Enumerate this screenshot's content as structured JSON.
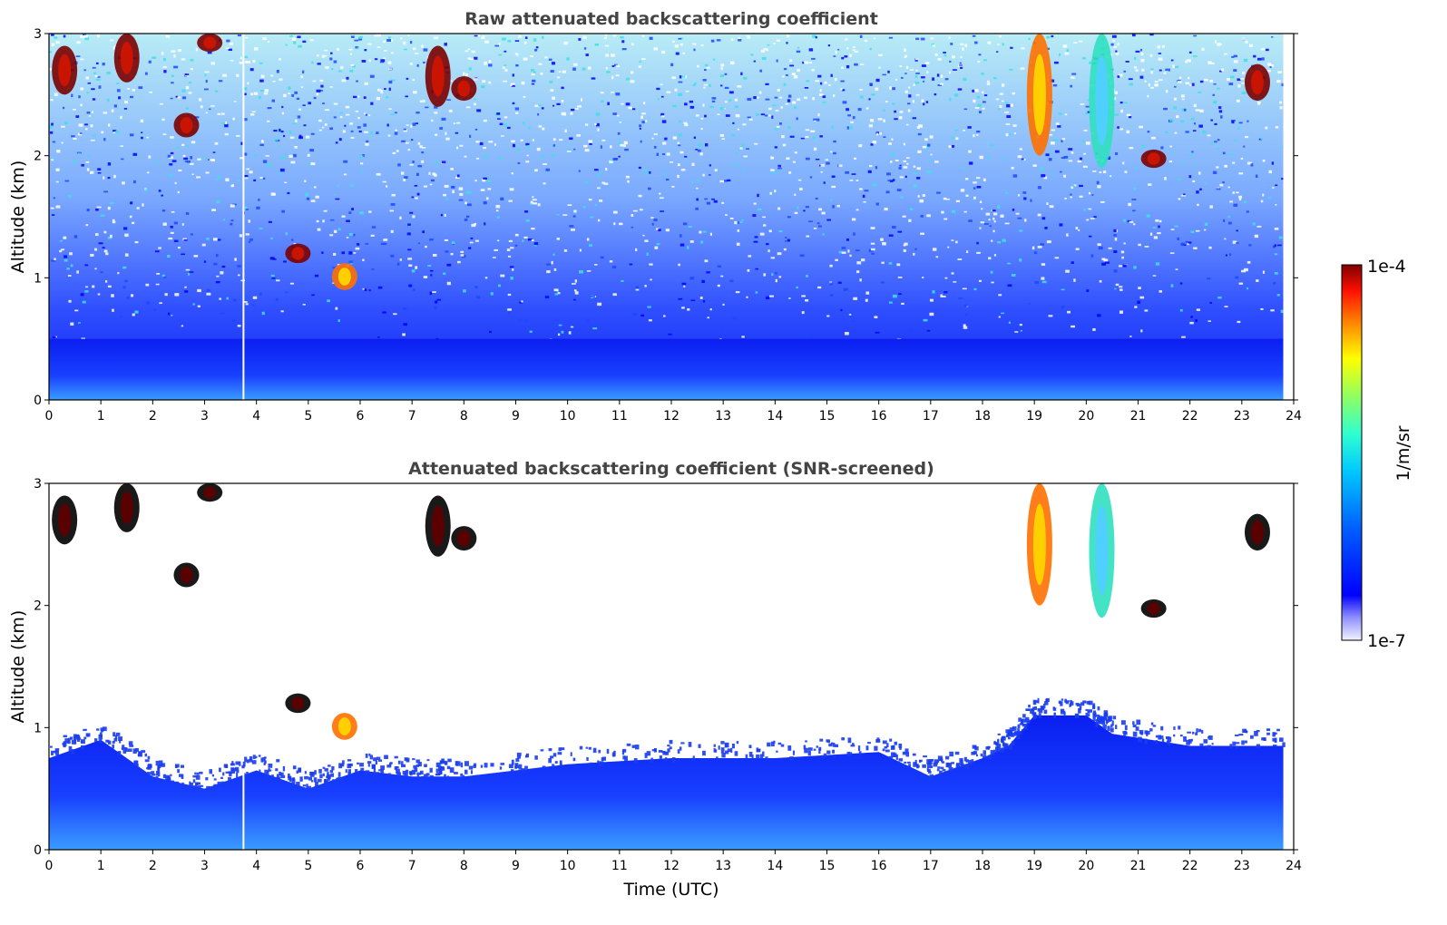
{
  "chart_data": [
    {
      "type": "heatmap",
      "title": "Raw attenuated backscattering coefficient",
      "xlabel": "",
      "ylabel": "Altitude (km)",
      "xlim": [
        0,
        24
      ],
      "ylim": [
        0,
        3
      ],
      "xticks": [
        "0",
        "1",
        "2",
        "3",
        "4",
        "5",
        "6",
        "7",
        "8",
        "9",
        "10",
        "11",
        "12",
        "13",
        "14",
        "15",
        "16",
        "17",
        "18",
        "19",
        "20",
        "21",
        "22",
        "23",
        "24"
      ],
      "yticks": [
        "0",
        "1",
        "2",
        "3"
      ],
      "data_time_end": 23.8,
      "gap_time": 3.75,
      "boundary_layer_top_km": 0.5,
      "clouds": [
        {
          "t": 0.3,
          "z_min": 2.5,
          "z_max": 2.9,
          "level": "high"
        },
        {
          "t": 1.5,
          "z_min": 2.6,
          "z_max": 3.0,
          "level": "high"
        },
        {
          "t": 2.65,
          "z_min": 2.15,
          "z_max": 2.35,
          "level": "high"
        },
        {
          "t": 3.1,
          "z_min": 2.85,
          "z_max": 3.0,
          "level": "high"
        },
        {
          "t": 4.8,
          "z_min": 1.12,
          "z_max": 1.28,
          "level": "high"
        },
        {
          "t": 5.7,
          "z_min": 0.9,
          "z_max": 1.12,
          "level": "medium"
        },
        {
          "t": 7.5,
          "z_min": 2.4,
          "z_max": 2.9,
          "level": "high"
        },
        {
          "t": 8.0,
          "z_min": 2.45,
          "z_max": 2.65,
          "level": "high"
        },
        {
          "t": 19.1,
          "z_min": 2.0,
          "z_max": 3.0,
          "level": "medium"
        },
        {
          "t": 20.3,
          "z_min": 1.9,
          "z_max": 3.0,
          "level": "low"
        },
        {
          "t": 21.3,
          "z_min": 1.9,
          "z_max": 2.05,
          "level": "high"
        },
        {
          "t": 23.3,
          "z_min": 2.45,
          "z_max": 2.75,
          "level": "high"
        }
      ]
    },
    {
      "type": "heatmap",
      "title": "Attenuated backscattering coefficient (SNR-screened)",
      "xlabel": "Time (UTC)",
      "ylabel": "Altitude (km)",
      "xlim": [
        0,
        24
      ],
      "ylim": [
        0,
        3
      ],
      "xticks": [
        "0",
        "1",
        "2",
        "3",
        "4",
        "5",
        "6",
        "7",
        "8",
        "9",
        "10",
        "11",
        "12",
        "13",
        "14",
        "15",
        "16",
        "17",
        "18",
        "19",
        "20",
        "21",
        "22",
        "23",
        "24"
      ],
      "yticks": [
        "0",
        "1",
        "2",
        "3"
      ],
      "data_time_end": 23.8,
      "gap_time": 3.75,
      "boundary_layer_top_km": [
        [
          0,
          0.75
        ],
        [
          1,
          0.9
        ],
        [
          2,
          0.6
        ],
        [
          3,
          0.5
        ],
        [
          4,
          0.65
        ],
        [
          5,
          0.5
        ],
        [
          6,
          0.65
        ],
        [
          7,
          0.6
        ],
        [
          8,
          0.6
        ],
        [
          10,
          0.7
        ],
        [
          12,
          0.75
        ],
        [
          14,
          0.75
        ],
        [
          16,
          0.8
        ],
        [
          17,
          0.6
        ],
        [
          18,
          0.75
        ],
        [
          18.5,
          0.85
        ],
        [
          19,
          1.1
        ],
        [
          20,
          1.1
        ],
        [
          20.5,
          0.95
        ],
        [
          22,
          0.85
        ],
        [
          23.8,
          0.85
        ]
      ]
    }
  ],
  "colorbar": {
    "label": "1/m/sr",
    "max_label": "1e-4",
    "min_label": "1e-7",
    "scale": "log",
    "colormap": "jet"
  },
  "colors": {
    "bl_core": "#1a3cf0",
    "bl_surface": "#3c8cff",
    "noise": "#1e46ff"
  }
}
